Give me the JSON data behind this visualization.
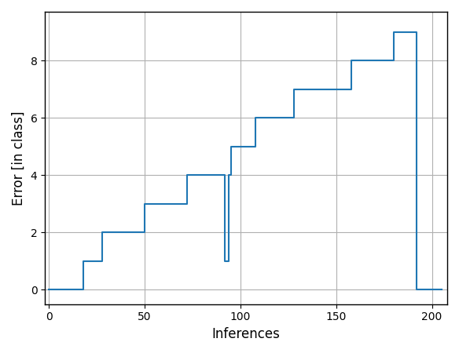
{
  "title": "",
  "xlabel": "Inferences",
  "ylabel": "Error [in class]",
  "line_color": "#1f77b4",
  "line_width": 1.5,
  "xlim": [
    -2,
    208
  ],
  "ylim": [
    -0.5,
    9.7
  ],
  "yticks": [
    0,
    2,
    4,
    6,
    8
  ],
  "xticks": [
    0,
    50,
    100,
    150,
    200
  ],
  "grid": true,
  "x": [
    0,
    18,
    18,
    28,
    28,
    43,
    43,
    50,
    50,
    62,
    62,
    72,
    72,
    82,
    82,
    92,
    92,
    94,
    94,
    95,
    95,
    98,
    98,
    108,
    108,
    117,
    117,
    128,
    128,
    143,
    143,
    158,
    158,
    165,
    165,
    180,
    180,
    192,
    192,
    196,
    196,
    205
  ],
  "y": [
    0,
    0,
    1,
    1,
    2,
    2,
    2,
    2,
    3,
    3,
    3,
    3,
    4,
    4,
    4,
    4,
    1,
    1,
    4,
    4,
    5,
    5,
    5,
    5,
    6,
    6,
    6,
    6,
    7,
    7,
    7,
    7,
    8,
    8,
    8,
    8,
    9,
    9,
    0,
    0,
    0,
    0
  ],
  "background_color": "#ffffff"
}
